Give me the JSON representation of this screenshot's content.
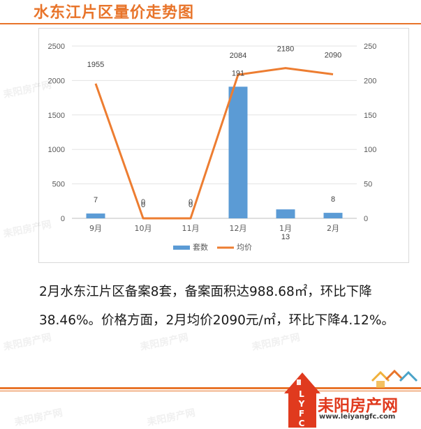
{
  "title": "水东江片区量价走势图",
  "summary": {
    "line1": "2月水东江片区备案8套，备案面积达988.68㎡，环比下降",
    "line2": "38.46%。价格方面，2月均价2090元/㎡，环比下降4.12%。"
  },
  "logo": {
    "name": "耒阳房产网",
    "url": "www.leiyangfc.com",
    "abbr": "LYFC",
    "watermark": "耒阳房产网"
  },
  "colors": {
    "accent": "#e8742a",
    "bar": "#5b9bd5",
    "line": "#ed7d31",
    "logo_red": "#e03a1e"
  },
  "chart_data": {
    "type": "bar",
    "categories": [
      "9月",
      "10月",
      "11月",
      "12月",
      "1月",
      "2月"
    ],
    "series": [
      {
        "name": "套数",
        "type": "bar",
        "axis": "right",
        "values": [
          7,
          0,
          0,
          191,
          13,
          8
        ],
        "labels": [
          "7",
          "0",
          "0",
          "191",
          "13",
          "8"
        ]
      },
      {
        "name": "均价",
        "type": "line",
        "axis": "left",
        "values": [
          1955,
          0,
          0,
          2084,
          2180,
          2090
        ],
        "labels": [
          "1955",
          "0",
          "0",
          "2084",
          "2180",
          "2090"
        ]
      }
    ],
    "y_left": {
      "min": 0,
      "max": 2500,
      "ticks": [
        "0",
        "500",
        "1000",
        "1500",
        "2000",
        "2500"
      ]
    },
    "y_right": {
      "min": 0,
      "max": 250,
      "ticks": [
        "0",
        "50",
        "100",
        "150",
        "200",
        "250"
      ]
    },
    "grid": true,
    "legend": "bottom"
  }
}
